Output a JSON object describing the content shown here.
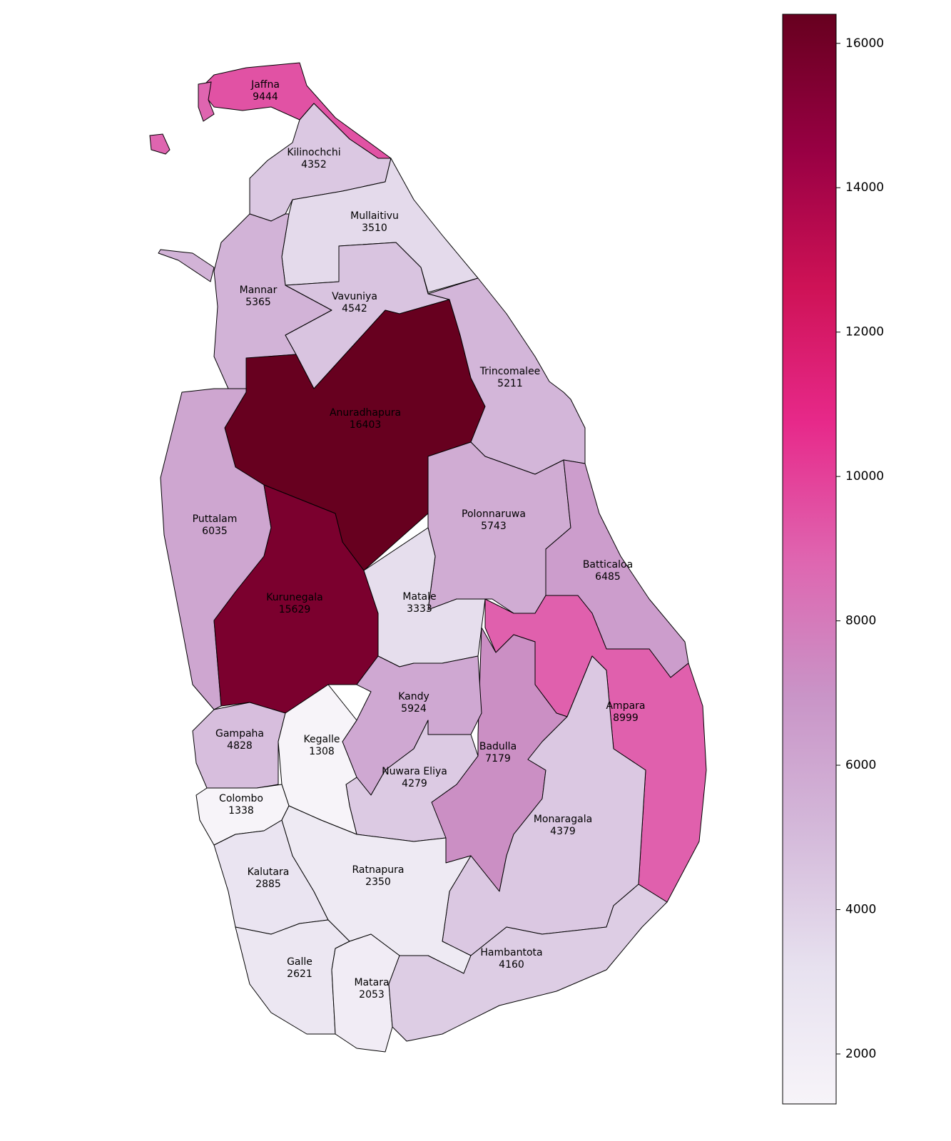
{
  "chart_data": {
    "type": "choropleth",
    "categories": [
      "Jaffna",
      "Kilinochchi",
      "Mullaitivu",
      "Mannar",
      "Vavuniya",
      "Anuradhapura",
      "Trincomalee",
      "Puttalam",
      "Kurunegala",
      "Polonnaruwa",
      "Matale",
      "Batticaloa",
      "Ampara",
      "Badulla",
      "Monaragala",
      "Kandy",
      "Nuwara Eliya",
      "Gampaha",
      "Kegalle",
      "Colombo",
      "Kalutara",
      "Ratnapura",
      "Galle",
      "Matara",
      "Hambantota"
    ],
    "values": [
      9444,
      4352,
      3510,
      5365,
      4542,
      16403,
      5211,
      6035,
      15629,
      5743,
      3333,
      6485,
      8999,
      7179,
      4379,
      5924,
      4279,
      4828,
      1308,
      1338,
      2885,
      2350,
      2621,
      2053,
      4160
    ],
    "colormap": [
      "#f7f4f9",
      "#e7e1ef",
      "#d4b9da",
      "#c994c7",
      "#df65b0",
      "#e7298a",
      "#ce1256",
      "#980043",
      "#67001f"
    ],
    "clim": [
      1308,
      16403
    ],
    "cticks": [
      2000,
      4000,
      6000,
      8000,
      10000,
      12000,
      14000,
      16000
    ]
  }
}
